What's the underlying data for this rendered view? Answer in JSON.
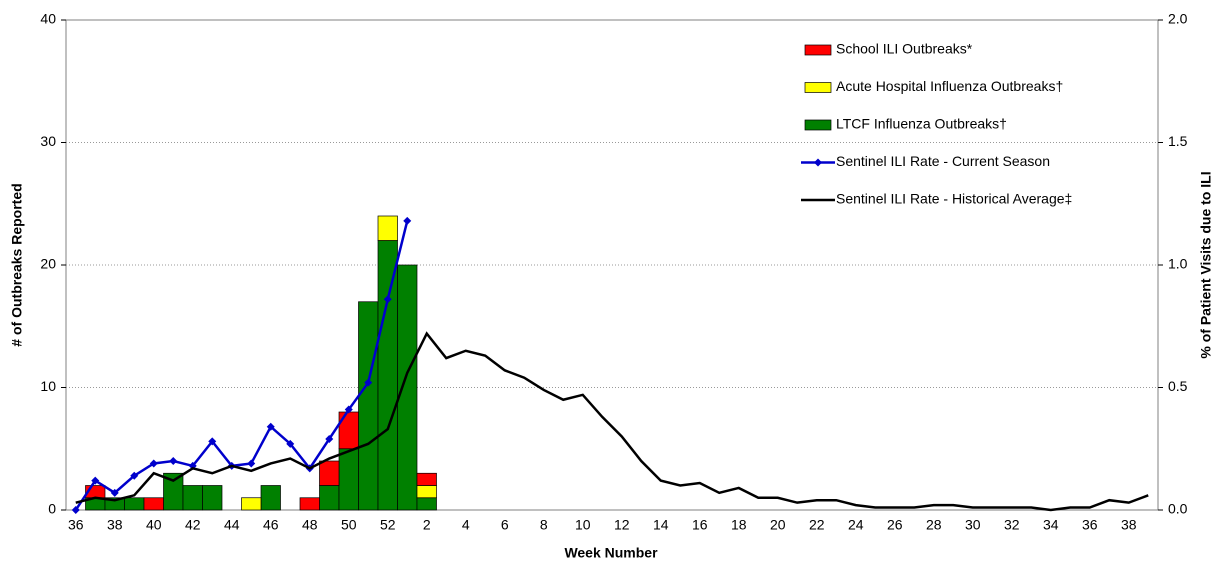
{
  "chart_data": {
    "type": "bar",
    "x_label": "Week Number",
    "y_label": "# of Outbreaks Reported",
    "y2_label": "% of Patient Visits due to ILI",
    "categories": [
      "36",
      null,
      "38",
      null,
      "40",
      null,
      "42",
      null,
      "44",
      null,
      "46",
      null,
      "48",
      null,
      "50",
      null,
      "52",
      null,
      "2",
      null,
      "4",
      null,
      "6",
      null,
      "8",
      null,
      "10",
      null,
      "12",
      null,
      "14",
      null,
      "16",
      null,
      "18",
      null,
      "20",
      null,
      "22",
      null,
      "24",
      null,
      "26",
      null,
      "28",
      null,
      "30",
      null,
      "32",
      null,
      "34",
      null,
      "36",
      null,
      "38",
      null
    ],
    "ylim": [
      0,
      40
    ],
    "yticks": [
      0,
      10,
      20,
      30,
      40
    ],
    "y2lim": [
      0,
      2
    ],
    "y2ticks": [
      {
        "value": 0,
        "label": "0.0"
      },
      {
        "value": 0.5,
        "label": "0.5"
      },
      {
        "value": 1,
        "label": "1.0"
      },
      {
        "value": 1.5,
        "label": "1.5"
      },
      {
        "value": 2,
        "label": "2.0"
      }
    ],
    "grid": true,
    "stacked": true,
    "legend": "upper right",
    "series": [
      {
        "name": "School ILI Outbreaks*",
        "color": "#ff0000",
        "type": "bar",
        "values": [
          0,
          1,
          0,
          0,
          1,
          0,
          0,
          0,
          0,
          0,
          0,
          0,
          1,
          2,
          3,
          0,
          0,
          0,
          1,
          0,
          0,
          0,
          0,
          0,
          0,
          0,
          0,
          0,
          0,
          0,
          0,
          0,
          0,
          0,
          0,
          0,
          0,
          0,
          0,
          0,
          0,
          0,
          0,
          0,
          0,
          0,
          0,
          0,
          0,
          0,
          0,
          0,
          0,
          0,
          0,
          0
        ]
      },
      {
        "name": "Acute Hospital Influenza Outbreaks†",
        "color": "#ffff00",
        "type": "bar",
        "values": [
          0,
          0,
          0,
          0,
          0,
          0,
          0,
          0,
          0,
          1,
          0,
          0,
          0,
          0,
          0,
          0,
          2,
          0,
          1,
          0,
          0,
          0,
          0,
          0,
          0,
          0,
          0,
          0,
          0,
          0,
          0,
          0,
          0,
          0,
          0,
          0,
          0,
          0,
          0,
          0,
          0,
          0,
          0,
          0,
          0,
          0,
          0,
          0,
          0,
          0,
          0,
          0,
          0,
          0,
          0,
          0
        ]
      },
      {
        "name": "LTCF Influenza Outbreaks†",
        "color": "#008000",
        "type": "bar",
        "values": [
          0,
          1,
          1,
          1,
          0,
          3,
          2,
          2,
          0,
          0,
          2,
          0,
          0,
          2,
          5,
          17,
          22,
          20,
          1,
          0,
          0,
          0,
          0,
          0,
          0,
          0,
          0,
          0,
          0,
          0,
          0,
          0,
          0,
          0,
          0,
          0,
          0,
          0,
          0,
          0,
          0,
          0,
          0,
          0,
          0,
          0,
          0,
          0,
          0,
          0,
          0,
          0,
          0,
          0,
          0,
          0
        ]
      },
      {
        "name": "Sentinel ILI Rate - Current Season",
        "color": "#0000cc",
        "type": "line",
        "axis": "y2",
        "marker": "diamond",
        "values": [
          0.0,
          0.12,
          0.07,
          0.14,
          0.19,
          0.2,
          0.18,
          0.28,
          0.18,
          0.19,
          0.34,
          0.27,
          0.17,
          0.29,
          0.41,
          0.52,
          0.86,
          1.18,
          null,
          null,
          null,
          null,
          null,
          null,
          null,
          null,
          null,
          null,
          null,
          null,
          null,
          null,
          null,
          null,
          null,
          null,
          null,
          null,
          null,
          null,
          null,
          null,
          null,
          null,
          null,
          null,
          null,
          null,
          null,
          null,
          null,
          null,
          null,
          null,
          null,
          null
        ]
      },
      {
        "name": "Sentinel ILI Rate - Historical Average‡",
        "color": "#000000",
        "type": "line",
        "axis": "y2",
        "values": [
          0.03,
          0.05,
          0.04,
          0.06,
          0.15,
          0.12,
          0.17,
          0.15,
          0.18,
          0.16,
          0.19,
          0.21,
          0.17,
          0.21,
          0.24,
          0.27,
          0.33,
          0.56,
          0.72,
          0.62,
          0.65,
          0.63,
          0.57,
          0.54,
          0.49,
          0.45,
          0.47,
          0.38,
          0.3,
          0.2,
          0.12,
          0.1,
          0.11,
          0.07,
          0.09,
          0.05,
          0.05,
          0.03,
          0.04,
          0.04,
          0.02,
          0.01,
          0.01,
          0.01,
          0.02,
          0.02,
          0.01,
          0.01,
          0.01,
          0.01,
          0.0,
          0.01,
          0.01,
          0.04,
          0.03,
          0.06
        ]
      }
    ]
  }
}
